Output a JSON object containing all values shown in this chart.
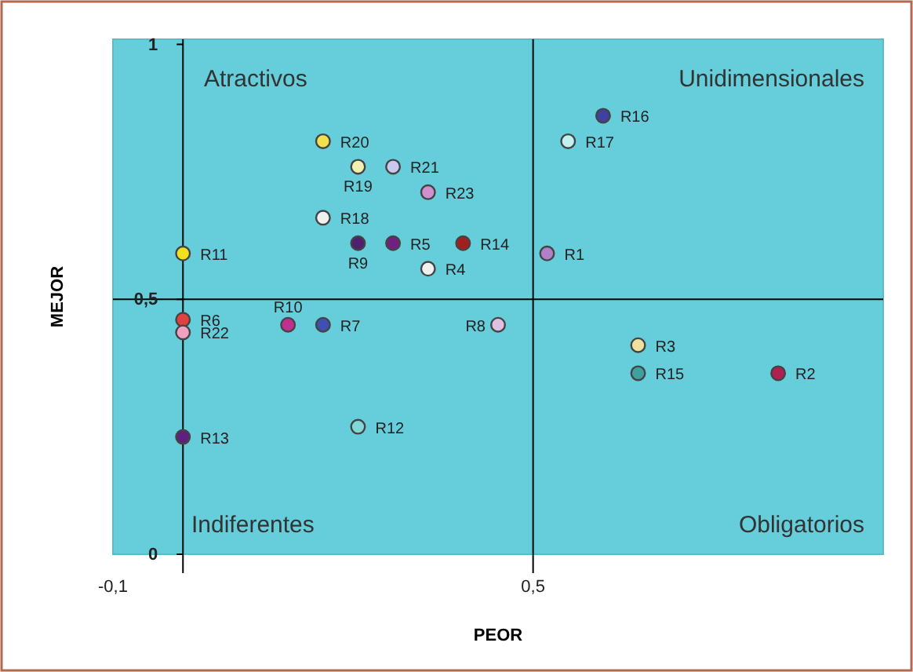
{
  "chart_data": {
    "type": "scatter",
    "xlabel": "PEOR",
    "ylabel": "MEJOR",
    "xlim": [
      -0.1,
      1
    ],
    "ylim": [
      0,
      1.01
    ],
    "xticks": [
      {
        "value": -0.1,
        "label": "-0,1"
      },
      {
        "value": 0.5,
        "label": "0,5"
      }
    ],
    "yticks": [
      0,
      {
        "value": 0.5,
        "label": "0,5"
      },
      1
    ],
    "grid": false,
    "marker": "circle",
    "ref_lines": [
      {
        "axis": "x",
        "value": 0,
        "label": null,
        "color": "#000000"
      },
      {
        "axis": "x",
        "value": 0.5,
        "label": null,
        "color": "#000000"
      },
      {
        "axis": "y",
        "value": 0.5,
        "label": null,
        "color": "#000000"
      }
    ],
    "annotations": [
      "Atractivos",
      "Unidimensionales",
      "Indiferentes",
      "Obligatorios"
    ],
    "series": [
      {
        "name": "R1",
        "color": "#b080c8",
        "x": [
          0.52
        ],
        "values": [
          0.59
        ]
      },
      {
        "name": "R2",
        "color": "#b02050",
        "x": [
          0.85
        ],
        "values": [
          0.355
        ]
      },
      {
        "name": "R3",
        "color": "#f0e0a0",
        "x": [
          0.65
        ],
        "values": [
          0.41
        ]
      },
      {
        "name": "R4",
        "color": "#f0f0f0",
        "x": [
          0.35
        ],
        "values": [
          0.56
        ]
      },
      {
        "name": "R5",
        "color": "#702080",
        "x": [
          0.3
        ],
        "values": [
          0.61
        ]
      },
      {
        "name": "R6",
        "color": "#e04040",
        "x": [
          0
        ],
        "values": [
          0.46
        ]
      },
      {
        "name": "R7",
        "color": "#4050b0",
        "x": [
          0.2
        ],
        "values": [
          0.45
        ]
      },
      {
        "name": "R8",
        "color": "#e0c0e0",
        "x": [
          0.45
        ],
        "values": [
          0.45
        ]
      },
      {
        "name": "R9",
        "color": "#502070",
        "x": [
          0.25
        ],
        "values": [
          0.61
        ]
      },
      {
        "name": "R10",
        "color": "#c03090",
        "x": [
          0.15
        ],
        "values": [
          0.45
        ]
      },
      {
        "name": "R11",
        "color": "#f0e020",
        "x": [
          0
        ],
        "values": [
          0.59
        ]
      },
      {
        "name": "R12",
        "color": "#80d8d8",
        "x": [
          0.25
        ],
        "values": [
          0.25
        ]
      },
      {
        "name": "R13",
        "color": "#602080",
        "x": [
          0
        ],
        "values": [
          0.23
        ]
      },
      {
        "name": "R14",
        "color": "#a02020",
        "x": [
          0.4
        ],
        "values": [
          0.61
        ]
      },
      {
        "name": "R15",
        "color": "#40a0a0",
        "x": [
          0.65
        ],
        "values": [
          0.355
        ]
      },
      {
        "name": "R16",
        "color": "#4040a0",
        "x": [
          0.6
        ],
        "values": [
          0.86
        ]
      },
      {
        "name": "R17",
        "color": "#c0f0f0",
        "x": [
          0.55
        ],
        "values": [
          0.81
        ]
      },
      {
        "name": "R18",
        "color": "#f0f0f0",
        "x": [
          0.2
        ],
        "values": [
          0.66
        ]
      },
      {
        "name": "R19",
        "color": "#f0f0b0",
        "x": [
          0.25
        ],
        "values": [
          0.76
        ]
      },
      {
        "name": "R20",
        "color": "#f0e050",
        "x": [
          0.2
        ],
        "values": [
          0.81
        ]
      },
      {
        "name": "R21",
        "color": "#c8c8f0",
        "x": [
          0.3
        ],
        "values": [
          0.76
        ]
      },
      {
        "name": "R22",
        "color": "#f0a0c0",
        "x": [
          0
        ],
        "values": [
          0.435
        ]
      },
      {
        "name": "R23",
        "color": "#d090d0",
        "x": [
          0.35
        ],
        "values": [
          0.71
        ]
      }
    ]
  }
}
